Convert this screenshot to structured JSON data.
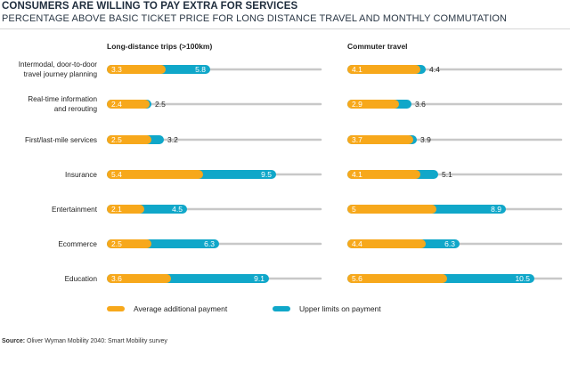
{
  "title": "CONSUMERS ARE WILLING TO PAY EXTRA FOR SERVICES",
  "subtitle": "PERCENTAGE ABOVE BASIC TICKET PRICE FOR LONG DISTANCE TRAVEL AND MONTHLY COMMUTATION",
  "source_label": "Source:",
  "source_text": "Oliver Wyman Mobility 2040: Smart Mobility survey",
  "colors": {
    "average": "#f7a81b",
    "upper": "#10a7c9",
    "track": "#c8c8c8"
  },
  "chart_data": {
    "type": "bar",
    "categories": [
      [
        "Intermodal, door-to-door",
        "travel journey planning"
      ],
      [
        "Real-time information",
        "and rerouting"
      ],
      [
        "First/last-mile services"
      ],
      [
        "Insurance"
      ],
      [
        "Entertainment"
      ],
      [
        "Ecommerce"
      ],
      [
        "Education"
      ]
    ],
    "panels": [
      {
        "title": "Long-distance trips (>100km)",
        "series": [
          {
            "name": "Average additional payment",
            "values": [
              3.3,
              2.4,
              2.5,
              5.4,
              2.1,
              2.5,
              3.6
            ]
          },
          {
            "name": "Upper limits on payment",
            "values": [
              5.8,
              2.5,
              3.2,
              9.5,
              4.5,
              6.3,
              9.1
            ]
          }
        ]
      },
      {
        "title": "Commuter travel",
        "series": [
          {
            "name": "Average additional payment",
            "values": [
              4.1,
              2.9,
              3.7,
              4.1,
              5.0,
              4.4,
              5.6
            ]
          },
          {
            "name": "Upper limits on payment",
            "values": [
              4.4,
              3.6,
              3.9,
              5.1,
              8.9,
              6.3,
              10.5
            ]
          }
        ]
      }
    ],
    "legend": [
      "Average additional payment",
      "Upper limits on payment"
    ],
    "legend_position": "bottom",
    "xlim": [
      0,
      12
    ]
  }
}
